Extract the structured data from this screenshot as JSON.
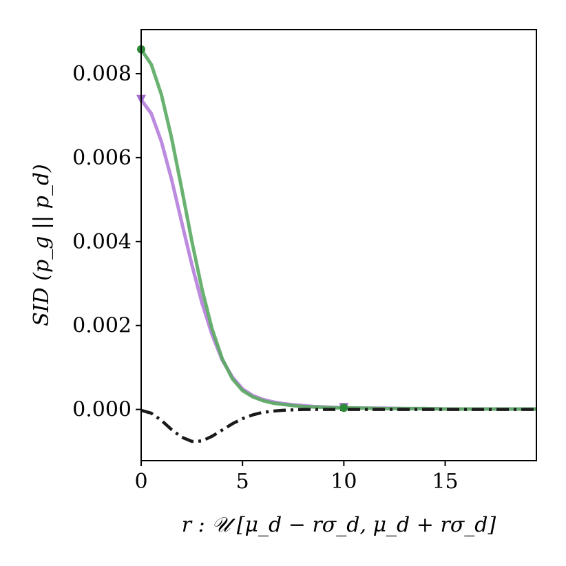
{
  "chart_data": {
    "type": "line",
    "title": "",
    "xlabel": "r : 𝒰 [μ_d − rσ_d, μ_d + rσ_d]",
    "ylabel": "SID (p_g || p_d)",
    "xlim": [
      0,
      19.5
    ],
    "ylim": [
      -0.00122,
      0.00905
    ],
    "x_ticks": [
      0,
      5,
      10,
      15
    ],
    "x_tick_labels": [
      "0",
      "5",
      "10",
      "15"
    ],
    "y_ticks": [
      0.0,
      0.002,
      0.004,
      0.006,
      0.008
    ],
    "y_tick_labels": [
      "0.000",
      "0.002",
      "0.004",
      "0.006",
      "0.008"
    ],
    "grid": false,
    "legend": "none",
    "series": [
      {
        "color": "#b57edc",
        "style": "solid",
        "marker": "triangle-down",
        "marker_x": [
          0,
          10
        ],
        "x": [
          0,
          0.5,
          1,
          1.5,
          2,
          2.5,
          3,
          3.5,
          4,
          4.5,
          5,
          5.5,
          6,
          6.5,
          7,
          7.5,
          8,
          8.5,
          9,
          9.5,
          10,
          11,
          12,
          13,
          14,
          15,
          16,
          17,
          18,
          19.5
        ],
        "values": [
          0.00738,
          0.00705,
          0.00638,
          0.00548,
          0.00446,
          0.00345,
          0.00254,
          0.00178,
          0.00118,
          0.00077,
          0.00049,
          0.00033,
          0.00024,
          0.00018,
          0.00014,
          0.00011,
          9e-05,
          7e-05,
          6e-05,
          5e-05,
          4e-05,
          3e-05,
          3e-05,
          2e-05,
          2e-05,
          1e-05,
          1e-05,
          1e-05,
          1e-05,
          1e-05
        ]
      },
      {
        "color": "#5aaa62",
        "style": "solid",
        "marker": "circle",
        "marker_x": [
          0,
          10
        ],
        "x": [
          0,
          0.5,
          1,
          1.5,
          2,
          2.5,
          3,
          3.5,
          4,
          4.5,
          5,
          5.5,
          6,
          6.5,
          7,
          7.5,
          8,
          8.5,
          9,
          9.5,
          10,
          11,
          12,
          13,
          14,
          15,
          16,
          17,
          18,
          19.5
        ],
        "values": [
          0.00858,
          0.00822,
          0.0075,
          0.00647,
          0.00526,
          0.00401,
          0.00287,
          0.00192,
          0.00121,
          0.00073,
          0.00045,
          0.0003,
          0.00021,
          0.00015,
          0.00012,
          9e-05,
          7e-05,
          6e-05,
          5e-05,
          4e-05,
          4e-05,
          3e-05,
          2e-05,
          2e-05,
          2e-05,
          1e-05,
          1e-05,
          1e-05,
          1e-05,
          1e-05
        ]
      },
      {
        "color": "#1a1a1a",
        "style": "dashdot",
        "marker": "none",
        "marker_x": [],
        "x": [
          0,
          0.5,
          1,
          1.5,
          2,
          2.5,
          3,
          3.5,
          4,
          4.5,
          5,
          5.5,
          6,
          6.5,
          7,
          7.5,
          8,
          8.5,
          9,
          9.5,
          10,
          11,
          12,
          13,
          14,
          15,
          16,
          17,
          18,
          19.5
        ],
        "values": [
          -2e-05,
          -9e-05,
          -0.00026,
          -0.00048,
          -0.00066,
          -0.00076,
          -0.00075,
          -0.00064,
          -0.00049,
          -0.00034,
          -0.00022,
          -0.00013,
          -7e-05,
          -4e-05,
          -2e-05,
          -1e-05,
          0.0,
          0.0,
          0.0,
          0.0,
          0.0,
          0.0,
          0.0,
          0.0,
          0.0,
          0.0,
          0.0,
          0.0,
          0.0,
          0.0
        ]
      }
    ]
  }
}
